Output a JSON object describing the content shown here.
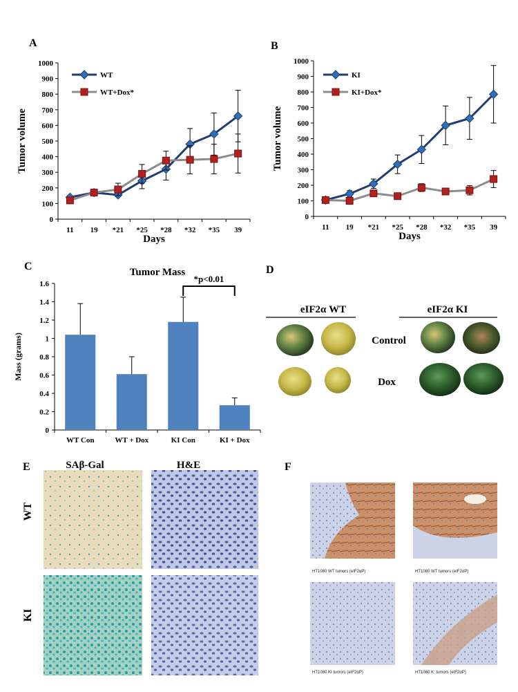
{
  "panels": {
    "A": "A",
    "B": "B",
    "C": "C",
    "D": "D",
    "E": "E",
    "F": "F"
  },
  "colors": {
    "wt": "#1f3d73",
    "wt_marker": "#2e6fb5",
    "dox": "#8c8c8c",
    "dox_marker": "#b32020",
    "bar": "#4f81bd"
  },
  "chart_data": [
    {
      "id": "A",
      "type": "line",
      "title": "",
      "xlabel": "Days",
      "ylabel": "Tumor volume",
      "categories": [
        "11",
        "19",
        "*21",
        "*25",
        "*28",
        "*32",
        "*35",
        "39"
      ],
      "ylim": [
        0,
        1000
      ],
      "yticks": [
        0,
        100,
        200,
        300,
        400,
        500,
        600,
        700,
        800,
        900,
        1000
      ],
      "series": [
        {
          "name": "WT",
          "color": "#1f3d73",
          "marker": "diamond",
          "marker_color": "#2e6fb5",
          "values": [
            140,
            170,
            155,
            245,
            320,
            480,
            545,
            660
          ],
          "errors": [
            0,
            0,
            0,
            50,
            70,
            100,
            135,
            165
          ]
        },
        {
          "name": "WT+Dox*",
          "color": "#8c8c8c",
          "marker": "square",
          "marker_color": "#b32020",
          "values": [
            120,
            170,
            190,
            290,
            375,
            380,
            385,
            420
          ],
          "errors": [
            0,
            0,
            40,
            60,
            60,
            90,
            95,
            125
          ]
        }
      ]
    },
    {
      "id": "B",
      "type": "line",
      "title": "",
      "xlabel": "Days",
      "ylabel": "Tumor volume",
      "categories": [
        "11",
        "19",
        "*21",
        "*25",
        "*28",
        "*32",
        "*35",
        "39"
      ],
      "ylim": [
        0,
        1000
      ],
      "yticks": [
        0,
        100,
        200,
        300,
        400,
        500,
        600,
        700,
        800,
        900,
        1000
      ],
      "series": [
        {
          "name": "KI",
          "color": "#1f3d73",
          "marker": "diamond",
          "marker_color": "#2e6fb5",
          "values": [
            105,
            145,
            210,
            335,
            430,
            585,
            630,
            785
          ],
          "errors": [
            0,
            20,
            30,
            60,
            90,
            125,
            135,
            185
          ]
        },
        {
          "name": "KI+Dox*",
          "color": "#8c8c8c",
          "marker": "square",
          "marker_color": "#b32020",
          "values": [
            105,
            100,
            148,
            130,
            185,
            160,
            168,
            240
          ],
          "errors": [
            0,
            0,
            0,
            0,
            25,
            20,
            30,
            55
          ]
        }
      ]
    },
    {
      "id": "C",
      "type": "bar",
      "title": "Tumor Mass",
      "xlabel": "",
      "ylabel": "Mass (grams)",
      "categories": [
        "WT  Con",
        "WT + Dox",
        "KI Con",
        "KI + Dox"
      ],
      "values": [
        1.04,
        0.61,
        1.18,
        0.27
      ],
      "errors": [
        0.34,
        0.19,
        0.27,
        0.08
      ],
      "ylim": [
        0,
        1.6
      ],
      "yticks": [
        "0",
        "0.2",
        "0.4",
        "0.6",
        "0.8",
        "1",
        "1.2",
        "1.4",
        "1.6"
      ],
      "annotation": "*p<0.01"
    }
  ],
  "panel_d": {
    "wt_header": "eIF2α WT",
    "ki_header": "eIF2α KI",
    "row_control": "Control",
    "row_dox": "Dox"
  },
  "panel_e": {
    "col1": "SAβ-Gal",
    "col2": "H&E",
    "row1": "WT",
    "row2": "KI"
  },
  "panel_f": {
    "cap1": "HT1080 WT tumors (eIF2αP)",
    "cap2": "HT1080 WT tumors (eIF2αP)",
    "cap3": "HT1080 KI tumors (eIF2αP)",
    "cap4": "HT1080 K: tumors (eIF2αP)"
  }
}
